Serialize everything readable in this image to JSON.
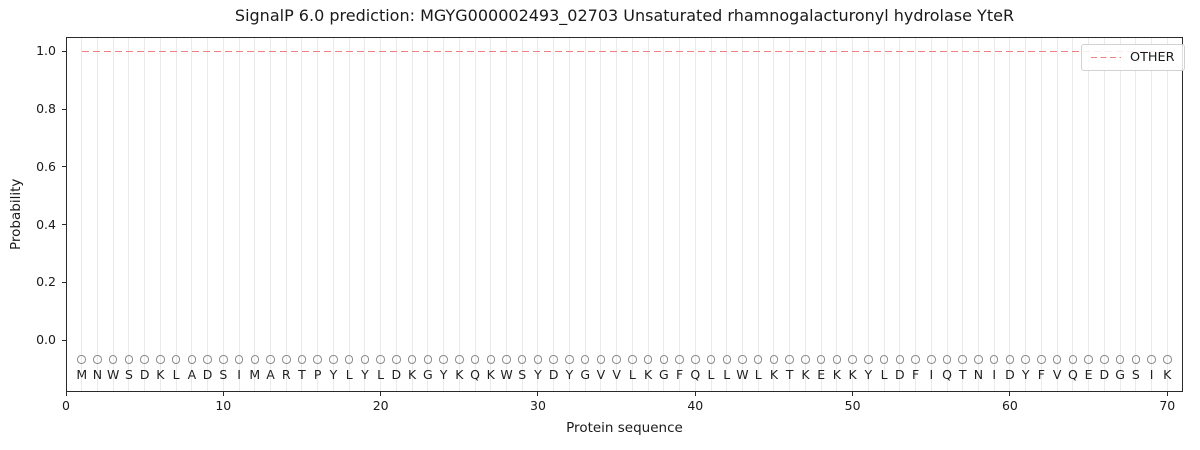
{
  "chart_data": {
    "type": "line",
    "title": "SignalP 6.0 prediction: MGYG000002493_02703 Unsaturated rhamnogalacturonyl hydrolase YteR",
    "xlabel": "Protein sequence",
    "ylabel": "Probability",
    "xlim": [
      0,
      71
    ],
    "ylim": [
      -0.18,
      1.05
    ],
    "xticks": [
      0,
      10,
      20,
      30,
      40,
      50,
      60,
      70
    ],
    "yticks": [
      0.0,
      0.2,
      0.4,
      0.6,
      0.8,
      1.0
    ],
    "ytick_labels": [
      "0.0",
      "0.2",
      "0.4",
      "0.6",
      "0.8",
      "1.0"
    ],
    "grid": {
      "vertical_line_per_residue": true
    },
    "legend": {
      "position": "upper-right",
      "entries": [
        {
          "label": "OTHER",
          "color": "#ee8181",
          "linestyle": "dashed"
        }
      ]
    },
    "sequence": "MNWSDKLADSIMARTPYLYLDKGYKQKWSYDYGVVLKGFQLLWLKTKEKKYLDFIQTNIDYFVQEDGSIK",
    "series": [
      {
        "name": "OTHER",
        "color": "#ee8181",
        "linestyle": "dashed",
        "x_start": 1,
        "x_end": 70,
        "values": [
          1.0,
          1.0,
          1.0,
          1.0,
          1.0,
          1.0,
          1.0,
          1.0,
          1.0,
          1.0,
          1.0,
          1.0,
          1.0,
          1.0,
          1.0,
          1.0,
          1.0,
          1.0,
          1.0,
          1.0,
          1.0,
          1.0,
          1.0,
          1.0,
          1.0,
          1.0,
          1.0,
          1.0,
          1.0,
          1.0,
          1.0,
          1.0,
          1.0,
          1.0,
          1.0,
          1.0,
          1.0,
          1.0,
          1.0,
          1.0,
          1.0,
          1.0,
          1.0,
          1.0,
          1.0,
          1.0,
          1.0,
          1.0,
          1.0,
          1.0,
          1.0,
          1.0,
          1.0,
          1.0,
          1.0,
          1.0,
          1.0,
          1.0,
          1.0,
          1.0,
          1.0,
          1.0,
          1.0,
          1.0,
          1.0,
          1.0,
          1.0,
          1.0,
          1.0,
          1.0
        ]
      }
    ],
    "marker_row": {
      "y": -0.068,
      "symbol": "open-circle",
      "color": "#8c8c8c"
    },
    "letter_row": {
      "y": -0.12
    }
  },
  "colors": {
    "other_line": "#ee8181",
    "marker_stroke": "#8c8c8c",
    "gridline": "#eaeaea",
    "spine": "#2a2a2a",
    "text": "#1a1a1a",
    "legend_border": "#d2d2d2"
  }
}
